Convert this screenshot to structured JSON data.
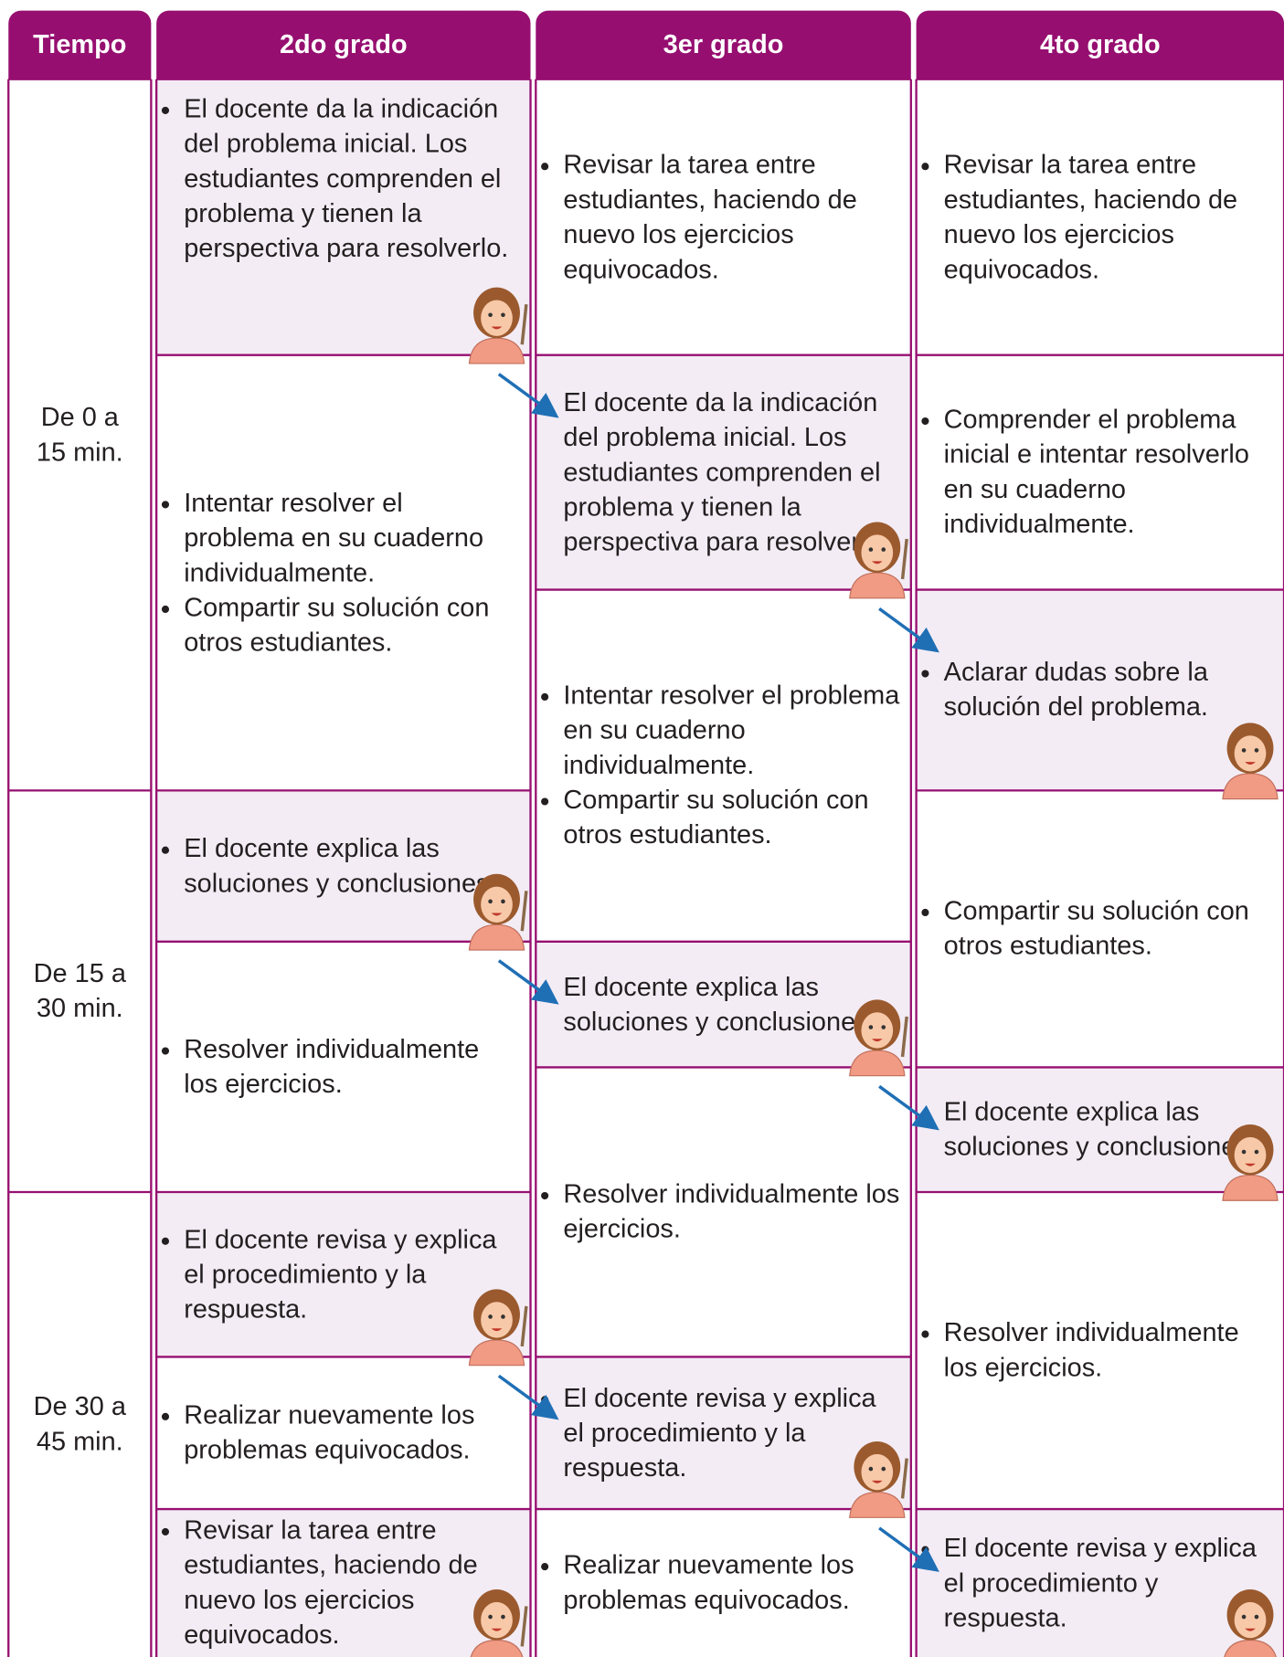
{
  "header": {
    "columns": [
      "Tiempo",
      "2do grado",
      "3er grado",
      "4to grado"
    ]
  },
  "time_rows": [
    "De 0 a 15 min.",
    "De 15 a 30 min.",
    "De 30 a 45 min."
  ],
  "grades": [
    {
      "cells": [
        {
          "bullets": [
            "El docente da la indicación del problema inicial. Los estudiantes comprenden el problema y tienen la perspectiva para resolverlo."
          ]
        },
        {
          "bullets": [
            "Intentar resolver el problema en su cuaderno individualmente.",
            "Compartir su solución con otros estudiantes."
          ]
        },
        {
          "bullets": [
            "El docente explica las soluciones y conclusiones."
          ]
        },
        {
          "bullets": [
            "Resolver individualmente los ejercicios."
          ]
        },
        {
          "bullets": [
            "El docente revisa y explica el procedimiento y la respuesta."
          ]
        },
        {
          "bullets": [
            "Realizar nuevamente los problemas equivocados."
          ]
        },
        {
          "bullets": [
            "Revisar la tarea entre estudiantes, haciendo de nuevo los ejercicios equivocados."
          ]
        }
      ]
    },
    {
      "cells": [
        {
          "bullets": [
            "Revisar la tarea entre estudiantes, haciendo de nuevo los ejercicios equivocados."
          ]
        },
        {
          "bullets": [
            "El docente da la indicación del problema inicial. Los estudiantes comprenden el problema y tienen la perspectiva para resolverlo."
          ]
        },
        {
          "bullets": [
            "Intentar resolver el problema en su cuaderno individualmente.",
            "Compartir su solución con otros estudiantes."
          ]
        },
        {
          "bullets": [
            "El docente explica las soluciones y conclusiones."
          ]
        },
        {
          "bullets": [
            "Resolver individualmente los ejercicios."
          ]
        },
        {
          "bullets": [
            "El docente revisa y explica el procedimiento y la respuesta."
          ]
        },
        {
          "bullets": [
            "Realizar nuevamente los problemas equivocados."
          ]
        }
      ]
    },
    {
      "cells": [
        {
          "bullets": [
            "Revisar la tarea entre estudiantes, haciendo de nuevo los ejercicios equivocados."
          ]
        },
        {
          "bullets": [
            "Comprender el problema inicial e intentar resolverlo en su cuaderno individualmente."
          ]
        },
        {
          "bullets": [
            "Aclarar dudas sobre la solución del problema."
          ]
        },
        {
          "bullets": [
            "Compartir su solución con otros estudiantes."
          ]
        },
        {
          "bullets": [
            "El docente explica las soluciones y conclusiones."
          ]
        },
        {
          "bullets": [
            "Resolver individualmente los ejercicios."
          ]
        },
        {
          "bullets": [
            "El docente revisa y explica el procedimiento y respuesta."
          ]
        }
      ]
    }
  ]
}
